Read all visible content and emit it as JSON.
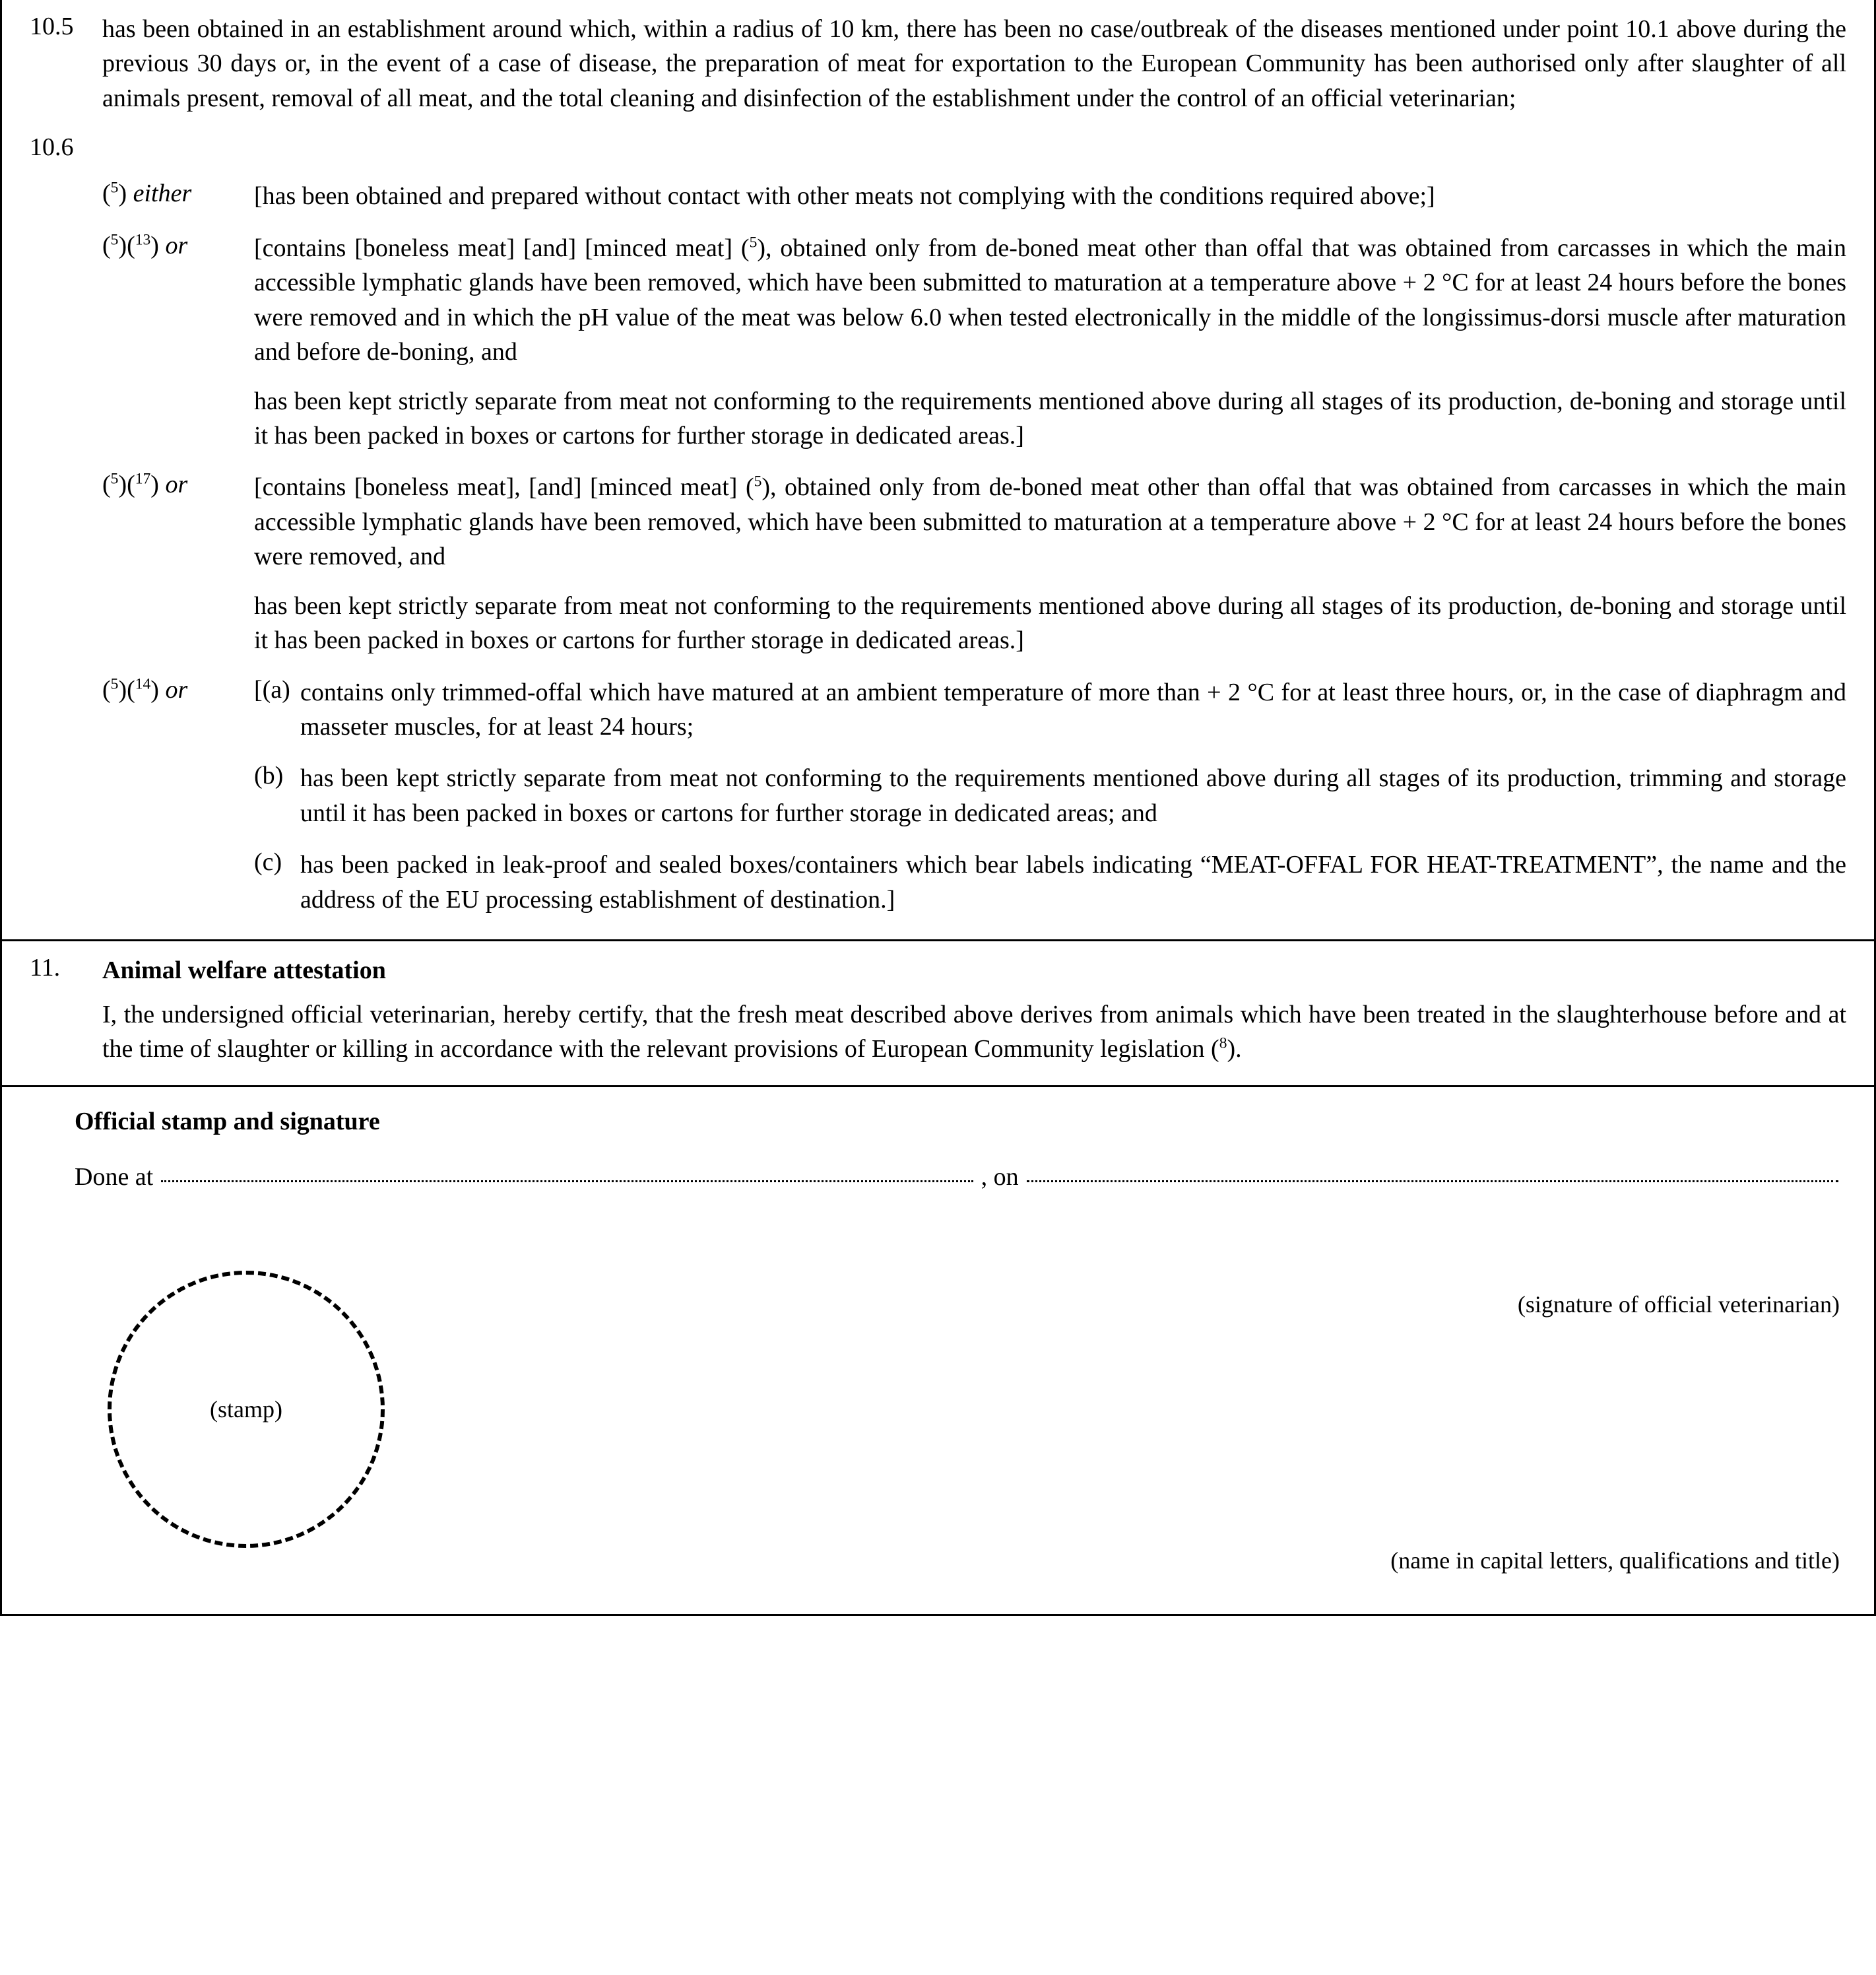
{
  "colors": {
    "text": "#000000",
    "background": "#ffffff",
    "border": "#000000"
  },
  "typography": {
    "body_fontsize_pt": 28,
    "family": "Georgia / Times-style serif",
    "line_height": 1.38,
    "justify": true
  },
  "clause_10_5": {
    "num": "10.5",
    "text": "has been obtained in an establishment around which, within a radius of 10 km, there has been no case/outbreak of the diseases mentioned under point 10.1 above during the previous 30 days or, in the event of a case of disease, the preparation of meat for exportation to the European Community has been authorised only after slaughter of all animals present, removal of all meat, and the total cleaning and disinfection of the establishment under the control of an official veterinarian;"
  },
  "clause_10_6": {
    "num": "10.6",
    "opt_a": {
      "ref_html": "(<sup>5</sup>) <span class=\"italic\">either</span>",
      "text": "[has been obtained and prepared without contact with other meats not complying with the conditions required above;]"
    },
    "opt_b": {
      "ref_html": "(<sup>5</sup>)(<sup>13</sup>) <span class=\"italic\">or</span>",
      "p1_html": "[contains [boneless meat] [and] [minced meat] (<sup>5</sup>), obtained only from de-boned meat other than offal that was obtained from carcasses in which the main accessible lymphatic glands have been removed, which have been submitted to maturation at a temperature above + 2 °C for at least 24 hours before the bones were removed and in which the pH value of the meat was below 6.0 when tested electronically in the middle of the longissimus-dorsi muscle after maturation and before de-boning, and",
      "p2": "has been kept strictly separate from meat not conforming to the requirements mentioned above during all stages of its production, de-boning and storage until it has been packed in boxes or cartons for further storage in dedicated areas.]"
    },
    "opt_c": {
      "ref_html": "(<sup>5</sup>)(<sup>17</sup>) <span class=\"italic\">or</span>",
      "p1_html": "[contains [boneless meat], [and] [minced meat] (<sup>5</sup>), obtained only from de-boned meat other than offal that was obtained from carcasses in which the main accessible lymphatic glands have been removed, which have been submitted to maturation at a temperature above + 2 °C for at least 24 hours before the bones were removed, and",
      "p2": "has been kept strictly separate from meat not conforming to the requirements mentioned above during all stages of its production, de-boning and storage until it has been packed in boxes or cartons for further storage in dedicated areas.]"
    },
    "opt_d": {
      "ref_html": "(<sup>5</sup>)(<sup>14</sup>) <span class=\"italic\">or</span>",
      "a": {
        "label": "[(a)",
        "text": "contains only trimmed-offal which have matured at an ambient temperature of more than + 2 °C for at least three hours, or, in the case of diaphragm and masseter muscles, for at least 24 hours;"
      },
      "b": {
        "label": "(b)",
        "text": "has been kept strictly separate from meat not conforming to the requirements mentioned above during all stages of its production, trimming and storage until it has been packed in boxes or cartons for further storage in dedicated areas; and"
      },
      "c": {
        "label": "(c)",
        "text": "has been packed in leak-proof and sealed boxes/containers which bear labels indicating “MEAT-OFFAL FOR HEAT-TREATMENT”, the name and the address of the EU processing establishment of destination.]"
      }
    }
  },
  "clause_11": {
    "num": "11.",
    "title": "Animal welfare attestation",
    "text_html": "I, the undersigned official veterinarian, hereby certify, that the fresh meat described above derives from animals which have been treated in the slaughterhouse before and at the time of slaughter or killing in accordance with the relevant provisions of European Community legislation (<sup>8</sup>)."
  },
  "signature": {
    "title": "Official stamp and signature",
    "done_at": "Done at",
    "on": ", on",
    "stamp": "(stamp)",
    "sig_line": "(signature of official veterinarian)",
    "name_line": "(name in capital letters, qualifications and title)"
  }
}
